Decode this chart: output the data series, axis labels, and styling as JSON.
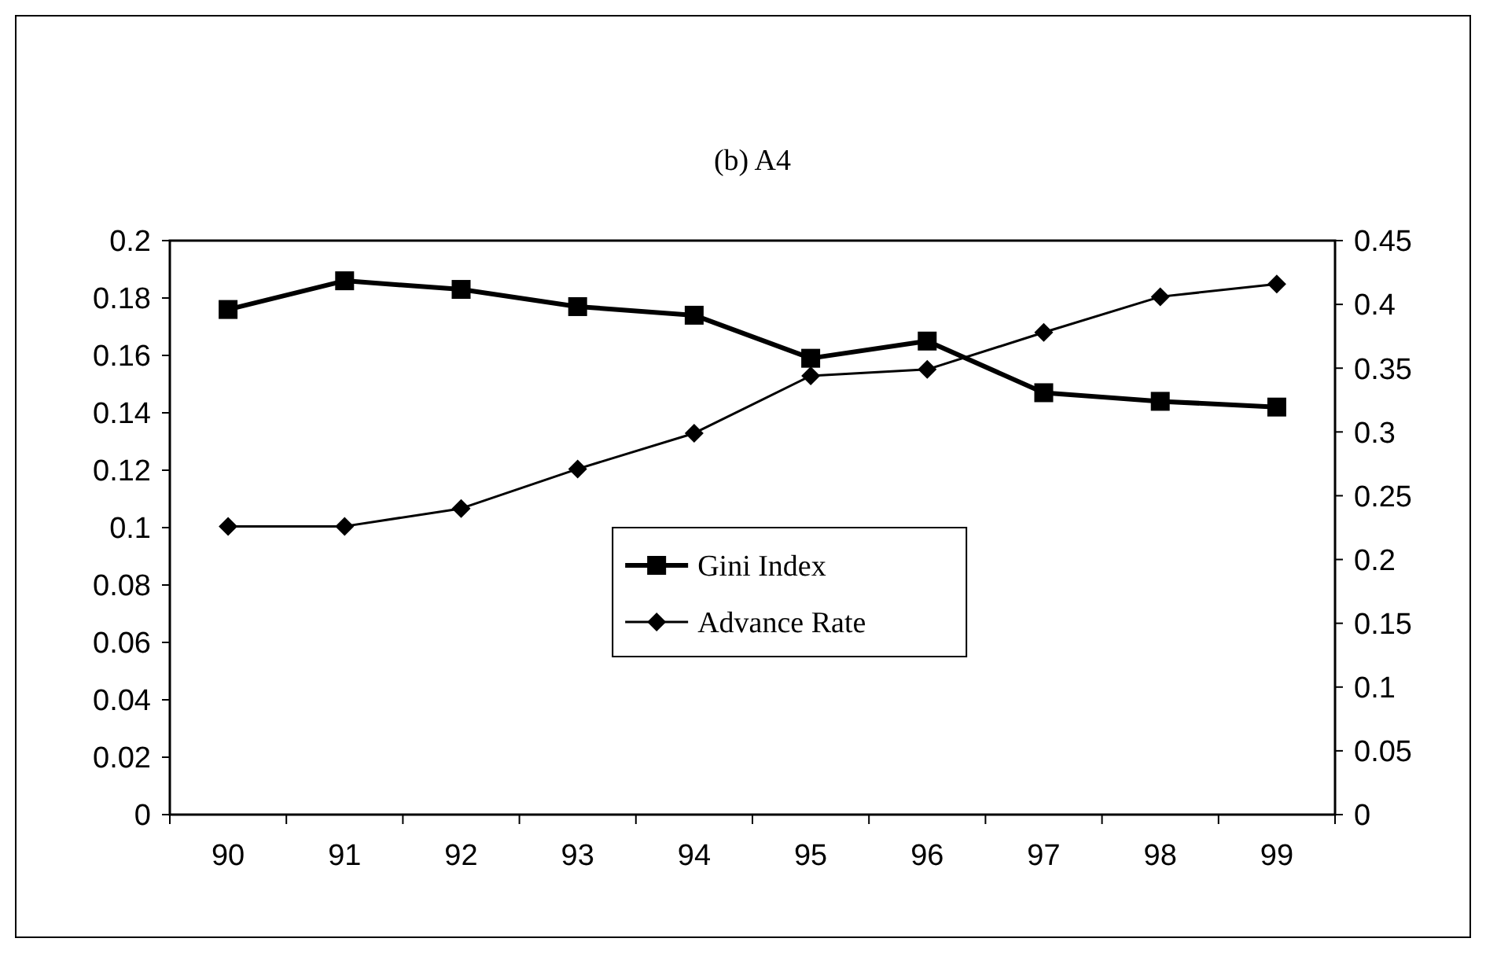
{
  "chart_data": {
    "type": "line",
    "title": "(b) A4",
    "categories": [
      "90",
      "91",
      "92",
      "93",
      "94",
      "95",
      "96",
      "97",
      "98",
      "99"
    ],
    "series": [
      {
        "name": "Gini Index",
        "color": "#000000",
        "marker": "square",
        "values": [
          0.176,
          0.186,
          0.183,
          0.177,
          0.174,
          0.159,
          0.165,
          0.147,
          0.144,
          0.142
        ]
      },
      {
        "name": "Advance Rate",
        "color": "#000000",
        "marker": "diamond",
        "axis": "y2",
        "values": [
          0.226,
          0.226,
          0.24,
          0.271,
          0.299,
          0.344,
          0.349,
          0.378,
          0.406,
          0.416
        ]
      }
    ],
    "ylim": [
      0,
      0.2
    ],
    "yticks": [
      0,
      0.02,
      0.04,
      0.06,
      0.08,
      0.1,
      0.12,
      0.14,
      0.16,
      0.18,
      0.2
    ],
    "y2lim": [
      0,
      0.45
    ],
    "y2ticks": [
      0,
      0.05,
      0.1,
      0.15,
      0.2,
      0.25,
      0.3,
      0.35,
      0.4,
      0.45
    ],
    "grid": false,
    "legend": "center"
  }
}
